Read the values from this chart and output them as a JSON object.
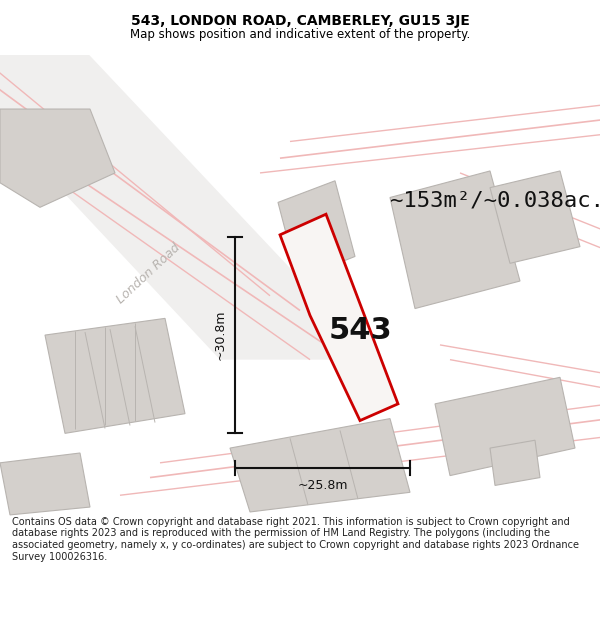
{
  "title": "543, LONDON ROAD, CAMBERLEY, GU15 3JE",
  "subtitle": "Map shows position and indicative extent of the property.",
  "area_text": "~153m²/~0.038ac.",
  "number_label": "543",
  "dim_height": "~30.8m",
  "dim_width": "~25.8m",
  "road_label": "London Road",
  "footer": "Contains OS data © Crown copyright and database right 2021. This information is subject to Crown copyright and database rights 2023 and is reproduced with the permission of HM Land Registry. The polygons (including the associated geometry, namely x, y co-ordinates) are subject to Crown copyright and database rights 2023 Ordnance Survey 100026316.",
  "bg_color": "#eceae8",
  "road_color": "#f0b8b8",
  "building_fill": "#d4d0cc",
  "building_edge": "#b8b4b0",
  "highlight_color": "#cc0000",
  "title_color": "#000000",
  "road_text_color": "#b8b4b0",
  "footer_color": "#222222",
  "title_fontsize": 10,
  "subtitle_fontsize": 8.5,
  "area_fontsize": 16,
  "number_fontsize": 22,
  "road_label_fontsize": 9,
  "dim_fontsize": 9,
  "footer_fontsize": 7.0
}
